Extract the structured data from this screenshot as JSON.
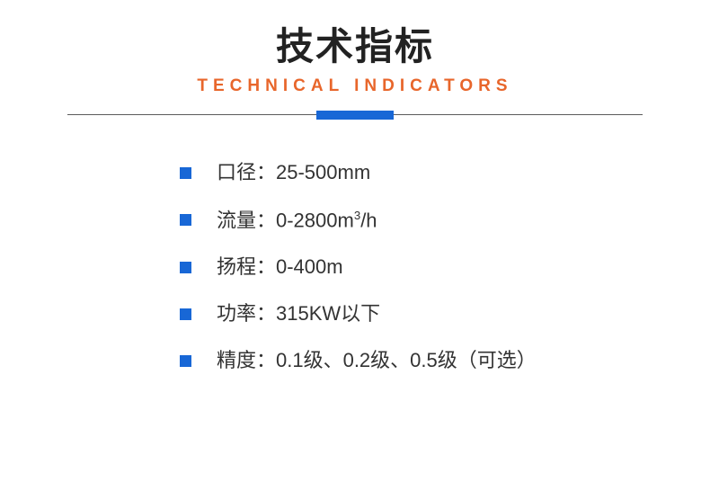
{
  "header": {
    "title_cn": "技术指标",
    "title_en": "TECHNICAL INDICATORS"
  },
  "colors": {
    "title_cn": "#222222",
    "title_en": "#e8662b",
    "divider_line": "#5c5c5c",
    "accent": "#1867d6",
    "body_text": "#333333",
    "background": "#ffffff"
  },
  "typography": {
    "title_cn_fontsize": 42,
    "title_cn_weight": 600,
    "title_en_fontsize": 19,
    "title_en_weight": 600,
    "title_en_letterspacing": 6,
    "spec_fontsize": 22
  },
  "divider": {
    "line_width": 640,
    "line_height": 1,
    "accent_width": 86,
    "accent_height": 10
  },
  "bullet": {
    "size": 13,
    "color": "#1867d6",
    "shape": "square"
  },
  "specs": [
    {
      "label": "口径",
      "value": "25-500mm"
    },
    {
      "label": "流量",
      "value": "0-2800m³/h"
    },
    {
      "label": "扬程",
      "value": "0-400m"
    },
    {
      "label": "功率",
      "value": "315KW以下"
    },
    {
      "label": "精度",
      "value": "0.1级、0.2级、0.5级（可选）"
    }
  ]
}
